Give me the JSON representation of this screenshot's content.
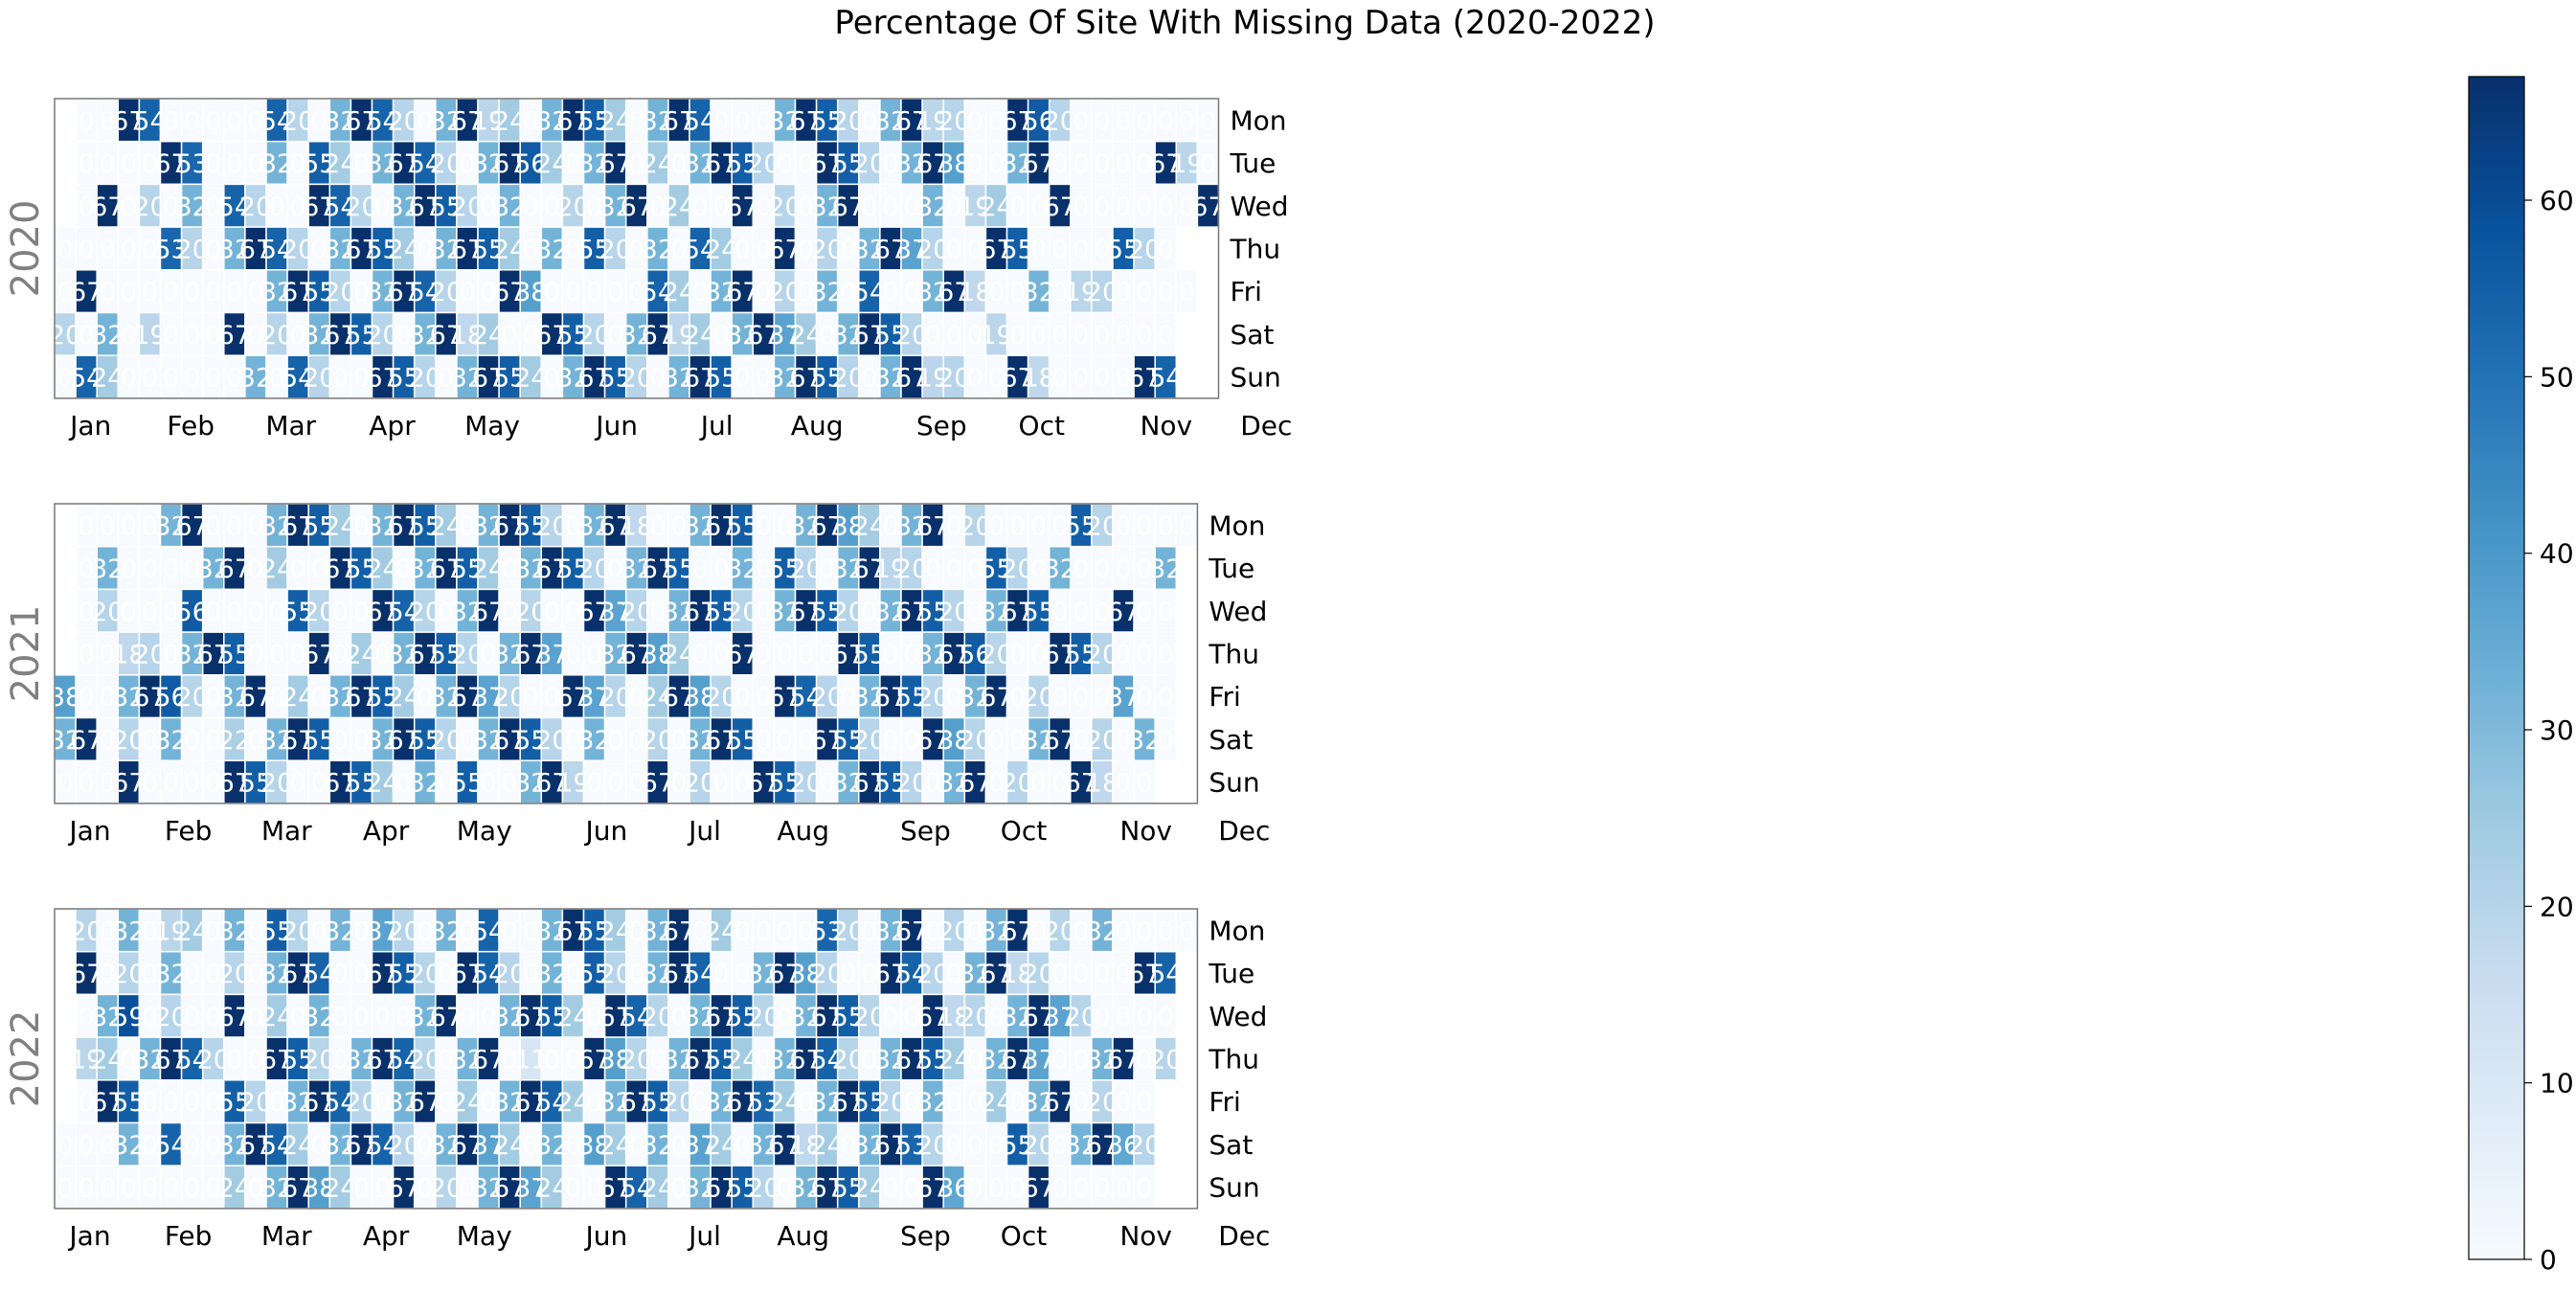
{
  "chart_data": {
    "type": "heatmap",
    "title": "Percentage Of Site With Missing Data (2020-2022)",
    "weekday_labels": [
      "Mon",
      "Tue",
      "Wed",
      "Thu",
      "Fri",
      "Sat",
      "Sun"
    ],
    "month_labels": [
      "Jan",
      "Feb",
      "Mar",
      "Apr",
      "May",
      "Jun",
      "Jul",
      "Aug",
      "Sep",
      "Oct",
      "Nov",
      "Dec"
    ],
    "colormap": "Blues",
    "colorbar": {
      "min": 0,
      "max": 67,
      "ticks": [
        0,
        10,
        20,
        30,
        40,
        50,
        60
      ]
    },
    "cell_text": "value rounded to integer",
    "years": [
      {
        "year": 2020,
        "grid": [
          [
            null,
            0,
            0,
            67,
            54,
            0,
            0,
            0,
            0,
            0,
            54,
            20,
            0,
            32,
            67,
            54,
            20,
            0,
            32,
            67,
            19,
            24,
            0,
            32,
            67,
            55,
            24,
            0,
            32,
            67,
            54,
            0,
            0,
            0,
            32,
            67,
            55,
            20,
            0,
            32,
            67,
            19,
            20,
            0,
            0,
            67,
            56,
            20,
            0,
            0,
            0,
            0,
            0,
            0,
            0
          ],
          [
            null,
            0,
            0,
            0,
            0,
            67,
            53,
            0,
            0,
            0,
            32,
            0,
            55,
            24,
            0,
            32,
            67,
            54,
            20,
            0,
            32,
            67,
            56,
            24,
            0,
            32,
            67,
            0,
            24,
            0,
            32,
            67,
            55,
            20,
            0,
            0,
            67,
            55,
            20,
            0,
            32,
            67,
            38,
            0,
            0,
            32,
            67,
            0,
            0,
            0,
            0,
            0,
            67,
            19,
            0
          ],
          [
            null,
            0,
            67,
            0,
            20,
            0,
            32,
            0,
            54,
            20,
            0,
            0,
            67,
            54,
            20,
            0,
            32,
            67,
            55,
            20,
            0,
            32,
            0,
            0,
            20,
            0,
            32,
            67,
            0,
            24,
            0,
            0,
            67,
            0,
            20,
            0,
            32,
            67,
            0,
            0,
            0,
            32,
            0,
            19,
            24,
            0,
            0,
            67,
            0,
            0,
            0,
            0,
            0,
            0,
            67
          ],
          [
            0,
            0,
            0,
            0,
            0,
            53,
            20,
            0,
            32,
            67,
            54,
            20,
            0,
            32,
            67,
            55,
            24,
            0,
            32,
            67,
            55,
            24,
            0,
            32,
            0,
            55,
            20,
            0,
            32,
            0,
            54,
            24,
            0,
            0,
            67,
            0,
            20,
            0,
            32,
            67,
            37,
            20,
            0,
            0,
            67,
            55,
            0,
            0,
            0,
            0,
            55,
            20,
            0,
            null
          ],
          [
            0,
            67,
            0,
            0,
            0,
            0,
            0,
            0,
            0,
            0,
            32,
            67,
            55,
            20,
            0,
            32,
            67,
            54,
            20,
            0,
            0,
            67,
            38,
            0,
            0,
            0,
            0,
            0,
            54,
            24,
            0,
            32,
            67,
            0,
            20,
            0,
            32,
            0,
            54,
            0,
            0,
            32,
            67,
            18,
            0,
            0,
            32,
            0,
            19,
            20,
            0,
            0,
            0,
            0,
            null
          ],
          [
            20,
            0,
            32,
            0,
            19,
            0,
            0,
            0,
            67,
            0,
            20,
            0,
            32,
            67,
            55,
            20,
            0,
            32,
            67,
            18,
            24,
            0,
            0,
            67,
            55,
            20,
            0,
            32,
            67,
            19,
            24,
            0,
            32,
            67,
            37,
            24,
            0,
            32,
            67,
            55,
            20,
            0,
            0,
            0,
            19,
            0,
            0,
            0,
            0,
            0,
            0,
            0,
            0,
            null
          ],
          [
            0,
            54,
            24,
            0,
            0,
            0,
            0,
            0,
            0,
            32,
            0,
            54,
            20,
            0,
            0,
            67,
            55,
            20,
            0,
            32,
            67,
            55,
            24,
            0,
            32,
            67,
            55,
            20,
            0,
            32,
            67,
            55,
            0,
            0,
            32,
            67,
            55,
            20,
            0,
            32,
            67,
            19,
            20,
            0,
            0,
            67,
            18,
            0,
            0,
            0,
            0,
            67,
            54,
            null
          ]
        ]
      },
      {
        "year": 2021,
        "grid": [
          [
            null,
            0,
            0,
            0,
            0,
            32,
            67,
            0,
            0,
            0,
            32,
            67,
            55,
            24,
            0,
            32,
            67,
            55,
            24,
            0,
            32,
            67,
            55,
            20,
            0,
            32,
            67,
            18,
            0,
            0,
            32,
            67,
            55,
            0,
            0,
            32,
            67,
            38,
            24,
            0,
            32,
            67,
            0,
            20,
            0,
            0,
            0,
            0,
            55,
            20,
            0,
            0,
            0,
            0
          ],
          [
            null,
            0,
            32,
            0,
            0,
            0,
            0,
            32,
            67,
            0,
            24,
            0,
            0,
            67,
            55,
            24,
            0,
            32,
            67,
            55,
            24,
            0,
            32,
            67,
            55,
            20,
            0,
            32,
            67,
            55,
            0,
            0,
            32,
            0,
            55,
            20,
            0,
            32,
            67,
            19,
            20,
            0,
            0,
            0,
            55,
            20,
            0,
            32,
            0,
            0,
            0,
            0,
            32
          ],
          [
            null,
            0,
            20,
            0,
            0,
            0,
            56,
            0,
            0,
            0,
            0,
            55,
            20,
            0,
            0,
            67,
            54,
            20,
            0,
            32,
            67,
            0,
            20,
            0,
            0,
            67,
            37,
            20,
            0,
            32,
            67,
            55,
            20,
            0,
            32,
            67,
            55,
            20,
            0,
            32,
            67,
            55,
            20,
            0,
            32,
            67,
            55,
            0,
            0,
            0,
            67,
            0,
            0
          ],
          [
            null,
            0,
            0,
            18,
            20,
            0,
            32,
            67,
            55,
            0,
            0,
            0,
            67,
            0,
            24,
            0,
            32,
            67,
            55,
            20,
            0,
            32,
            67,
            37,
            0,
            0,
            32,
            67,
            38,
            24,
            0,
            0,
            67,
            0,
            0,
            0,
            0,
            67,
            55,
            0,
            0,
            32,
            67,
            56,
            20,
            0,
            0,
            67,
            55,
            20,
            0,
            0,
            0
          ],
          [
            38,
            0,
            0,
            32,
            67,
            56,
            20,
            0,
            32,
            67,
            0,
            24,
            0,
            32,
            67,
            55,
            24,
            0,
            32,
            67,
            37,
            20,
            0,
            0,
            67,
            37,
            20,
            0,
            24,
            67,
            38,
            20,
            0,
            0,
            67,
            54,
            20,
            0,
            32,
            67,
            55,
            20,
            0,
            32,
            67,
            0,
            20,
            0,
            0,
            0,
            37,
            0,
            0
          ],
          [
            32,
            67,
            0,
            20,
            0,
            32,
            0,
            0,
            22,
            0,
            32,
            67,
            55,
            0,
            0,
            32,
            67,
            55,
            20,
            0,
            32,
            67,
            55,
            20,
            0,
            32,
            0,
            0,
            20,
            0,
            32,
            67,
            55,
            0,
            0,
            0,
            67,
            55,
            20,
            0,
            0,
            67,
            38,
            20,
            0,
            0,
            32,
            67,
            0,
            20,
            0,
            32,
            0
          ],
          [
            0,
            0,
            0,
            67,
            0,
            0,
            0,
            0,
            67,
            55,
            20,
            0,
            0,
            67,
            55,
            24,
            0,
            32,
            0,
            55,
            0,
            0,
            32,
            67,
            19,
            0,
            0,
            0,
            67,
            0,
            20,
            0,
            0,
            67,
            55,
            20,
            0,
            32,
            67,
            55,
            20,
            0,
            32,
            67,
            0,
            20,
            0,
            0,
            67,
            18,
            0,
            0,
            null
          ]
        ]
      },
      {
        "year": 2022,
        "grid": [
          [
            null,
            20,
            0,
            32,
            0,
            19,
            24,
            0,
            32,
            0,
            55,
            20,
            0,
            32,
            0,
            37,
            20,
            0,
            32,
            0,
            54,
            0,
            0,
            32,
            67,
            55,
            24,
            0,
            32,
            67,
            0,
            24,
            0,
            0,
            0,
            0,
            53,
            20,
            0,
            32,
            67,
            0,
            20,
            0,
            32,
            67,
            0,
            20,
            0,
            32,
            0,
            0,
            0,
            0
          ],
          [
            null,
            67,
            0,
            20,
            0,
            32,
            0,
            0,
            20,
            0,
            32,
            67,
            54,
            0,
            0,
            67,
            55,
            20,
            0,
            67,
            54,
            20,
            0,
            32,
            0,
            55,
            20,
            0,
            32,
            67,
            54,
            0,
            0,
            32,
            67,
            38,
            20,
            0,
            0,
            67,
            54,
            20,
            0,
            32,
            67,
            18,
            20,
            0,
            0,
            0,
            0,
            67,
            54
          ],
          [
            null,
            0,
            32,
            59,
            0,
            20,
            0,
            0,
            67,
            0,
            24,
            0,
            32,
            0,
            0,
            0,
            0,
            32,
            67,
            0,
            0,
            32,
            67,
            55,
            24,
            0,
            67,
            54,
            20,
            0,
            32,
            67,
            55,
            20,
            0,
            32,
            67,
            55,
            20,
            0,
            0,
            67,
            18,
            20,
            0,
            32,
            67,
            37,
            20,
            0,
            0,
            0,
            0
          ],
          [
            null,
            19,
            24,
            0,
            32,
            67,
            54,
            20,
            0,
            0,
            67,
            55,
            20,
            0,
            32,
            67,
            54,
            20,
            0,
            32,
            67,
            0,
            11,
            0,
            0,
            67,
            38,
            20,
            0,
            32,
            67,
            55,
            24,
            0,
            32,
            67,
            54,
            20,
            0,
            32,
            67,
            55,
            24,
            0,
            32,
            67,
            37,
            0,
            0,
            32,
            67,
            0,
            20
          ],
          [
            null,
            0,
            67,
            55,
            0,
            0,
            0,
            0,
            55,
            20,
            0,
            32,
            67,
            54,
            20,
            0,
            32,
            67,
            0,
            24,
            0,
            32,
            67,
            54,
            24,
            0,
            32,
            67,
            55,
            20,
            0,
            32,
            67,
            53,
            24,
            0,
            32,
            67,
            55,
            20,
            0,
            32,
            0,
            0,
            24,
            0,
            32,
            67,
            0,
            20,
            0,
            0,
            null
          ],
          [
            0,
            0,
            0,
            32,
            0,
            54,
            0,
            0,
            32,
            67,
            54,
            24,
            0,
            32,
            67,
            54,
            20,
            0,
            32,
            67,
            37,
            24,
            0,
            32,
            0,
            38,
            24,
            0,
            32,
            0,
            37,
            24,
            0,
            32,
            67,
            18,
            24,
            0,
            32,
            67,
            53,
            20,
            0,
            0,
            0,
            55,
            20,
            0,
            32,
            67,
            36,
            20,
            null
          ],
          [
            0,
            0,
            0,
            0,
            0,
            0,
            0,
            0,
            24,
            0,
            32,
            67,
            38,
            24,
            0,
            0,
            67,
            0,
            20,
            0,
            32,
            67,
            37,
            24,
            0,
            0,
            67,
            54,
            24,
            0,
            32,
            67,
            55,
            20,
            0,
            32,
            67,
            55,
            24,
            0,
            0,
            67,
            36,
            0,
            0,
            0,
            67,
            0,
            0,
            0,
            0,
            0,
            null
          ]
        ]
      }
    ]
  }
}
